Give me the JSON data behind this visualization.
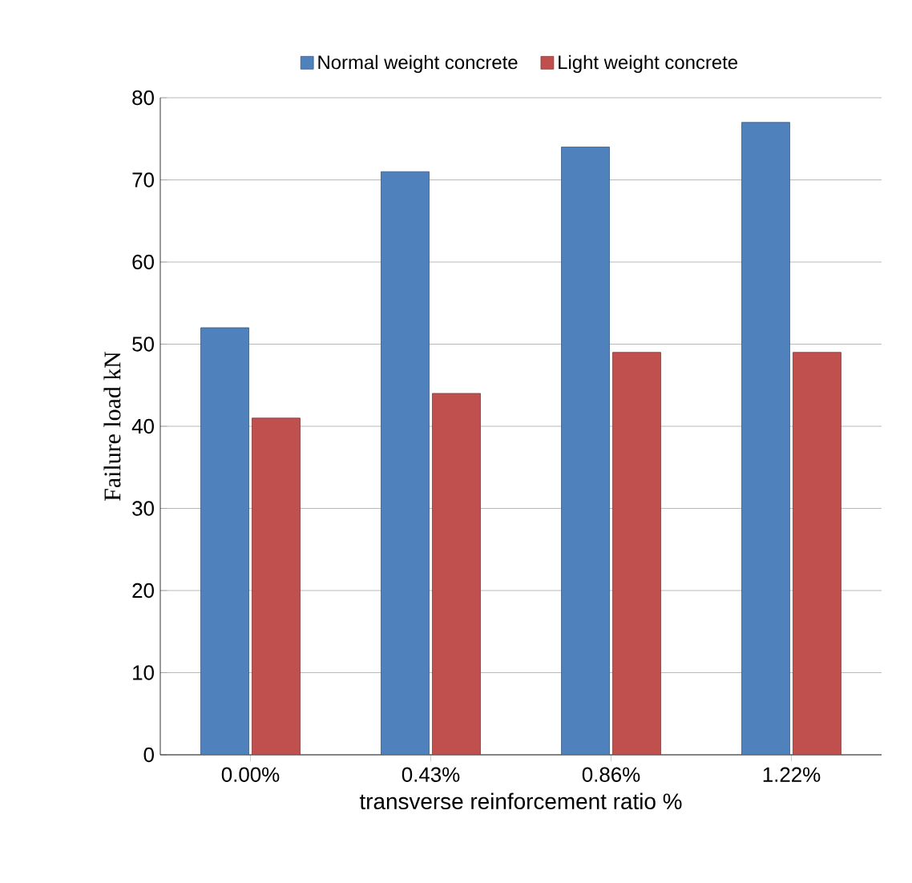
{
  "chart_data": {
    "type": "bar",
    "xlabel": "transverse reinforcement  ratio %",
    "ylabel": "Failure load kN",
    "categories": [
      "0.00%",
      "0.43%",
      "0.86%",
      "1.22%"
    ],
    "series": [
      {
        "name": "Normal weight concrete",
        "color": "#4f81bd",
        "values": [
          52,
          71,
          74,
          77
        ]
      },
      {
        "name": "Light weight concrete",
        "color": "#c0504d",
        "values": [
          41,
          44,
          49,
          49
        ]
      }
    ],
    "ylim": [
      0,
      80
    ],
    "yticks": [
      0,
      10,
      20,
      30,
      40,
      50,
      60,
      70,
      80
    ],
    "grid": "y",
    "legend": "top"
  }
}
